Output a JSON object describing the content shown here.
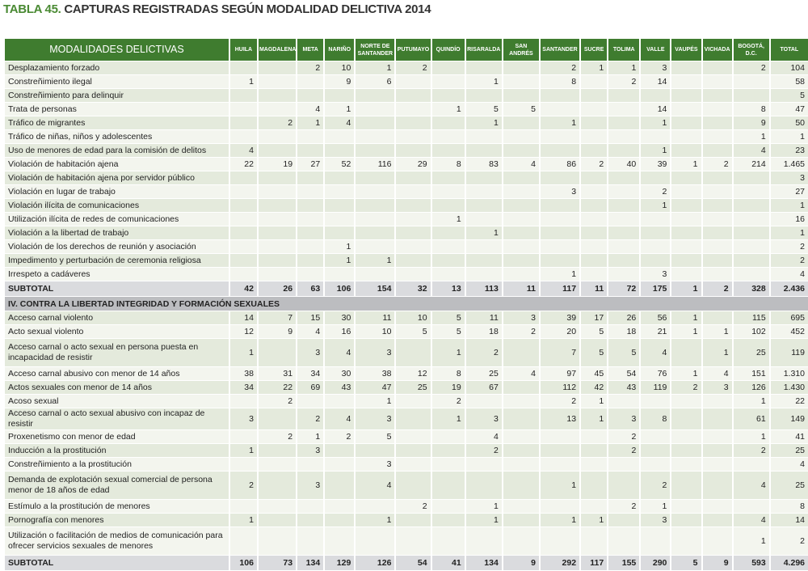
{
  "title": {
    "number": "TABLA 45.",
    "text": "CAPTURAS REGISTRADAS SEGÚN MODALIDAD DELICTIVA 2014"
  },
  "colors": {
    "header_green": "#3f7c2f",
    "row_odd": "#e4eadc",
    "row_even": "#f3f5ee",
    "subtotal": "#dadbde",
    "section": "#bcbdc0"
  },
  "table": {
    "headers": [
      "MODALIDADES DELICTIVAS",
      "HUILA",
      "MAGDALENA",
      "META",
      "NARIÑO",
      "NORTE DE SANTANDER",
      "PUTUMAYO",
      "QUINDÍO",
      "RISARALDA",
      "SAN ANDRÉS",
      "SANTANDER",
      "SUCRE",
      "TOLIMA",
      "VALLE",
      "VAUPÉS",
      "VICHADA",
      "BOGOTÁ, D.C.",
      "TOTAL"
    ],
    "sections": [
      {
        "title": "",
        "rows": [
          {
            "label": "Desplazamiento forzado",
            "values": [
              "",
              "",
              "2",
              "10",
              "1",
              "2",
              "",
              "",
              "",
              "2",
              "1",
              "1",
              "3",
              "",
              "",
              "2",
              "104"
            ]
          },
          {
            "label": "Constreñimiento ilegal",
            "values": [
              "1",
              "",
              "",
              "9",
              "6",
              "",
              "",
              "1",
              "",
              "8",
              "",
              "2",
              "14",
              "",
              "",
              "",
              "58"
            ]
          },
          {
            "label": "Constreñimiento para delinquir",
            "values": [
              "",
              "",
              "",
              "",
              "",
              "",
              "",
              "",
              "",
              "",
              "",
              "",
              "",
              "",
              "",
              "",
              "5"
            ]
          },
          {
            "label": "Trata de personas",
            "values": [
              "",
              "",
              "4",
              "1",
              "",
              "",
              "1",
              "5",
              "5",
              "",
              "",
              "",
              "14",
              "",
              "",
              "8",
              "47"
            ]
          },
          {
            "label": "Tráfico de migrantes",
            "values": [
              "",
              "2",
              "1",
              "4",
              "",
              "",
              "",
              "1",
              "",
              "1",
              "",
              "",
              "1",
              "",
              "",
              "9",
              "50"
            ]
          },
          {
            "label": "Tráfico de niñas, niños y adolescentes",
            "values": [
              "",
              "",
              "",
              "",
              "",
              "",
              "",
              "",
              "",
              "",
              "",
              "",
              "",
              "",
              "",
              "1",
              "1"
            ]
          },
          {
            "label": "Uso de menores de edad para la comisión de delitos",
            "values": [
              "4",
              "",
              "",
              "",
              "",
              "",
              "",
              "",
              "",
              "",
              "",
              "",
              "1",
              "",
              "",
              "4",
              "23"
            ]
          },
          {
            "label": "Violación de habitación ajena",
            "values": [
              "22",
              "19",
              "27",
              "52",
              "116",
              "29",
              "8",
              "83",
              "4",
              "86",
              "2",
              "40",
              "39",
              "1",
              "2",
              "214",
              "1.465"
            ]
          },
          {
            "label": "Violación de habitación ajena por servidor público",
            "values": [
              "",
              "",
              "",
              "",
              "",
              "",
              "",
              "",
              "",
              "",
              "",
              "",
              "",
              "",
              "",
              "",
              "3"
            ]
          },
          {
            "label": "Violación en lugar de trabajo",
            "values": [
              "",
              "",
              "",
              "",
              "",
              "",
              "",
              "",
              "",
              "3",
              "",
              "",
              "2",
              "",
              "",
              "",
              "27"
            ]
          },
          {
            "label": "Violación ilícita de comunicaciones",
            "values": [
              "",
              "",
              "",
              "",
              "",
              "",
              "",
              "",
              "",
              "",
              "",
              "",
              "1",
              "",
              "",
              "",
              "1"
            ]
          },
          {
            "label": "Utilización ilícita de redes de comunicaciones",
            "values": [
              "",
              "",
              "",
              "",
              "",
              "",
              "1",
              "",
              "",
              "",
              "",
              "",
              "",
              "",
              "",
              "",
              "16"
            ]
          },
          {
            "label": "Violación a la libertad de trabajo",
            "values": [
              "",
              "",
              "",
              "",
              "",
              "",
              "",
              "1",
              "",
              "",
              "",
              "",
              "",
              "",
              "",
              "",
              "1"
            ]
          },
          {
            "label": "Violación de los derechos de reunión y asociación",
            "values": [
              "",
              "",
              "",
              "1",
              "",
              "",
              "",
              "",
              "",
              "",
              "",
              "",
              "",
              "",
              "",
              "",
              "2"
            ]
          },
          {
            "label": "Impedimento y perturbación de ceremonia religiosa",
            "values": [
              "",
              "",
              "",
              "1",
              "1",
              "",
              "",
              "",
              "",
              "",
              "",
              "",
              "",
              "",
              "",
              "",
              "2"
            ]
          },
          {
            "label": "Irrespeto a cadáveres",
            "values": [
              "",
              "",
              "",
              "",
              "",
              "",
              "",
              "",
              "",
              "1",
              "",
              "",
              "3",
              "",
              "",
              "",
              "4"
            ]
          }
        ],
        "subtotal": {
          "label": "SUBTOTAL",
          "values": [
            "42",
            "26",
            "63",
            "106",
            "154",
            "32",
            "13",
            "113",
            "11",
            "117",
            "11",
            "72",
            "175",
            "1",
            "2",
            "328",
            "2.436"
          ]
        }
      },
      {
        "title": "IV. CONTRA LA LIBERTAD INTEGRIDAD Y FORMACIÓN SEXUALES",
        "rows": [
          {
            "label": "Acceso carnal violento",
            "values": [
              "14",
              "7",
              "15",
              "30",
              "11",
              "10",
              "5",
              "11",
              "3",
              "39",
              "17",
              "26",
              "56",
              "1",
              "",
              "115",
              "695"
            ]
          },
          {
            "label": "Acto sexual violento",
            "values": [
              "12",
              "9",
              "4",
              "16",
              "10",
              "5",
              "5",
              "18",
              "2",
              "20",
              "5",
              "18",
              "21",
              "1",
              "1",
              "102",
              "452"
            ]
          },
          {
            "label": "Acceso carnal o acto sexual en persona puesta en incapacidad de resistir",
            "values": [
              "1",
              "",
              "3",
              "4",
              "3",
              "",
              "1",
              "2",
              "",
              "7",
              "5",
              "5",
              "4",
              "",
              "1",
              "25",
              "119"
            ]
          },
          {
            "label": "Acceso carnal abusivo con menor de 14 años",
            "values": [
              "38",
              "31",
              "34",
              "30",
              "38",
              "12",
              "8",
              "25",
              "4",
              "97",
              "45",
              "54",
              "76",
              "1",
              "4",
              "151",
              "1.310"
            ]
          },
          {
            "label": "Actos sexuales con menor de 14 años",
            "values": [
              "34",
              "22",
              "69",
              "43",
              "47",
              "25",
              "19",
              "67",
              "",
              "112",
              "42",
              "43",
              "119",
              "2",
              "3",
              "126",
              "1.430"
            ]
          },
          {
            "label": "Acoso sexual",
            "values": [
              "",
              "2",
              "",
              "",
              "1",
              "",
              "2",
              "",
              "",
              "2",
              "1",
              "",
              "",
              "",
              "",
              "1",
              "22"
            ]
          },
          {
            "label": "Acceso carnal o acto sexual abusivo con incapaz de resistir",
            "values": [
              "3",
              "",
              "2",
              "4",
              "3",
              "",
              "1",
              "3",
              "",
              "13",
              "1",
              "3",
              "8",
              "",
              "",
              "61",
              "149"
            ]
          },
          {
            "label": "Proxenetismo con menor de edad",
            "values": [
              "",
              "2",
              "1",
              "2",
              "5",
              "",
              "",
              "4",
              "",
              "",
              "",
              "2",
              "",
              "",
              "",
              "1",
              "41"
            ]
          },
          {
            "label": "Inducción a la prostitución",
            "values": [
              "1",
              "",
              "3",
              "",
              "",
              "",
              "",
              "2",
              "",
              "",
              "",
              "2",
              "",
              "",
              "",
              "2",
              "25"
            ]
          },
          {
            "label": "Constreñimiento a la prostitución",
            "values": [
              "",
              "",
              "",
              "",
              "3",
              "",
              "",
              "",
              "",
              "",
              "",
              "",
              "",
              "",
              "",
              "",
              "4"
            ]
          },
          {
            "label": "Demanda de explotación sexual comercial de persona menor de 18 años de edad",
            "values": [
              "2",
              "",
              "3",
              "",
              "4",
              "",
              "",
              "",
              "",
              "1",
              "",
              "",
              "2",
              "",
              "",
              "4",
              "25"
            ]
          },
          {
            "label": "Estímulo a la prostitución de menores",
            "values": [
              "",
              "",
              "",
              "",
              "",
              "2",
              "",
              "1",
              "",
              "",
              "",
              "2",
              "1",
              "",
              "",
              "",
              "8"
            ]
          },
          {
            "label": "Pornografía con menores",
            "values": [
              "1",
              "",
              "",
              "",
              "1",
              "",
              "",
              "1",
              "",
              "1",
              "1",
              "",
              "3",
              "",
              "",
              "4",
              "14"
            ]
          },
          {
            "label": "Utilización o facilitación de medios de comunicación para ofrecer servicios sexuales de menores",
            "values": [
              "",
              "",
              "",
              "",
              "",
              "",
              "",
              "",
              "",
              "",
              "",
              "",
              "",
              "",
              "",
              "1",
              "2"
            ]
          }
        ],
        "subtotal": {
          "label": "SUBTOTAL",
          "values": [
            "106",
            "73",
            "134",
            "129",
            "126",
            "54",
            "41",
            "134",
            "9",
            "292",
            "117",
            "155",
            "290",
            "5",
            "9",
            "593",
            "4.296"
          ]
        }
      }
    ]
  }
}
